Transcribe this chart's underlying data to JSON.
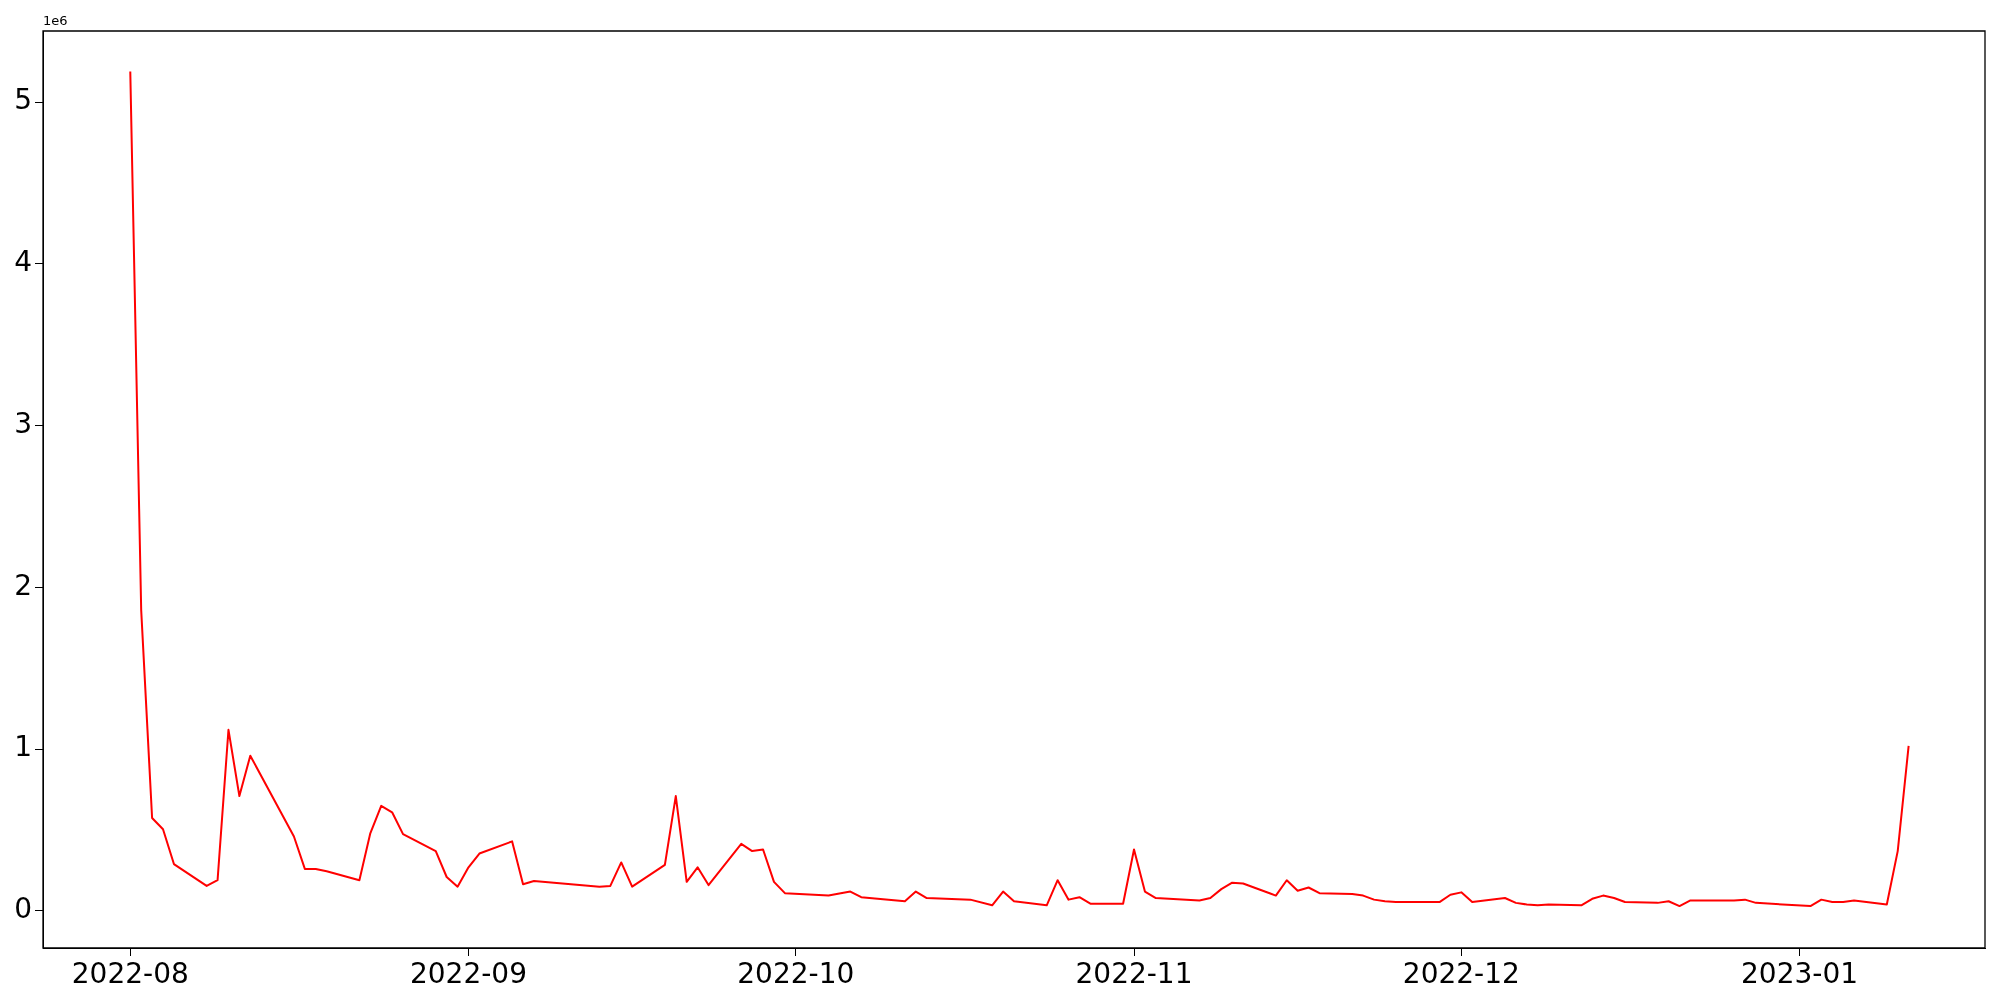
{
  "chart_data": {
    "type": "line",
    "annotations": [
      "1e6"
    ],
    "x": [
      "2022-08-01",
      "2022-08-02",
      "2022-08-03",
      "2022-08-04",
      "2022-08-05",
      "2022-08-08",
      "2022-08-09",
      "2022-08-10",
      "2022-08-11",
      "2022-08-12",
      "2022-08-16",
      "2022-08-17",
      "2022-08-18",
      "2022-08-19",
      "2022-08-22",
      "2022-08-23",
      "2022-08-24",
      "2022-08-25",
      "2022-08-26",
      "2022-08-29",
      "2022-08-30",
      "2022-08-31",
      "2022-09-01",
      "2022-09-02",
      "2022-09-05",
      "2022-09-06",
      "2022-09-07",
      "2022-09-13",
      "2022-09-14",
      "2022-09-15",
      "2022-09-16",
      "2022-09-19",
      "2022-09-20",
      "2022-09-21",
      "2022-09-22",
      "2022-09-23",
      "2022-09-26",
      "2022-09-27",
      "2022-09-28",
      "2022-09-29",
      "2022-09-30",
      "2022-10-04",
      "2022-10-06",
      "2022-10-07",
      "2022-10-11",
      "2022-10-12",
      "2022-10-13",
      "2022-10-17",
      "2022-10-19",
      "2022-10-20",
      "2022-10-21",
      "2022-10-24",
      "2022-10-25",
      "2022-10-26",
      "2022-10-27",
      "2022-10-28",
      "2022-10-31",
      "2022-11-01",
      "2022-11-02",
      "2022-11-03",
      "2022-11-07",
      "2022-11-08",
      "2022-11-09",
      "2022-11-10",
      "2022-11-11",
      "2022-11-14",
      "2022-11-15",
      "2022-11-16",
      "2022-11-17",
      "2022-11-18",
      "2022-11-21",
      "2022-11-22",
      "2022-11-23",
      "2022-11-24",
      "2022-11-25",
      "2022-11-29",
      "2022-11-30",
      "2022-12-01",
      "2022-12-02",
      "2022-12-05",
      "2022-12-06",
      "2022-12-07",
      "2022-12-08",
      "2022-12-09",
      "2022-12-12",
      "2022-12-13",
      "2022-12-14",
      "2022-12-15",
      "2022-12-16",
      "2022-12-19",
      "2022-12-20",
      "2022-12-21",
      "2022-12-22",
      "2022-12-26",
      "2022-12-27",
      "2022-12-28",
      "2023-01-02",
      "2023-01-03",
      "2023-01-04",
      "2023-01-05",
      "2023-01-06",
      "2023-01-09",
      "2023-01-10",
      "2023-01-11"
    ],
    "series": [
      {
        "color": "#ff0000",
        "values": [
          5.19,
          1.86,
          0.575,
          0.505,
          0.29,
          0.155,
          0.19,
          1.12,
          0.71,
          0.96,
          0.46,
          0.26,
          0.26,
          0.245,
          0.19,
          0.48,
          0.65,
          0.61,
          0.475,
          0.37,
          0.21,
          0.15,
          0.27,
          0.355,
          0.43,
          0.165,
          0.185,
          0.15,
          0.155,
          0.3,
          0.15,
          0.285,
          0.71,
          0.18,
          0.27,
          0.16,
          0.415,
          0.37,
          0.38,
          0.18,
          0.11,
          0.095,
          0.12,
          0.085,
          0.06,
          0.12,
          0.08,
          0.07,
          0.035,
          0.12,
          0.06,
          0.035,
          0.19,
          0.07,
          0.085,
          0.045,
          0.045,
          0.38,
          0.12,
          0.08,
          0.065,
          0.08,
          0.135,
          0.175,
          0.17,
          0.095,
          0.19,
          0.125,
          0.145,
          0.11,
          0.105,
          0.095,
          0.07,
          0.06,
          0.055,
          0.055,
          0.1,
          0.115,
          0.055,
          0.08,
          0.05,
          0.04,
          0.035,
          0.04,
          0.035,
          0.075,
          0.095,
          0.08,
          0.055,
          0.05,
          0.06,
          0.03,
          0.065,
          0.065,
          0.07,
          0.05,
          0.03,
          0.07,
          0.055,
          0.055,
          0.065,
          0.04,
          0.37,
          1.02
        ]
      }
    ],
    "xlim": [
      "2022-07-24",
      "2023-01-18"
    ],
    "xticks": [
      "2022-08",
      "2022-09",
      "2022-10",
      "2022-11",
      "2022-12",
      "2023-01"
    ],
    "ylim": [
      -0.229,
      5.44
    ],
    "yticks": [
      0,
      1,
      2,
      3,
      4,
      5
    ],
    "grid": false,
    "legend": false,
    "marker": "none",
    "line_style": "solid"
  }
}
